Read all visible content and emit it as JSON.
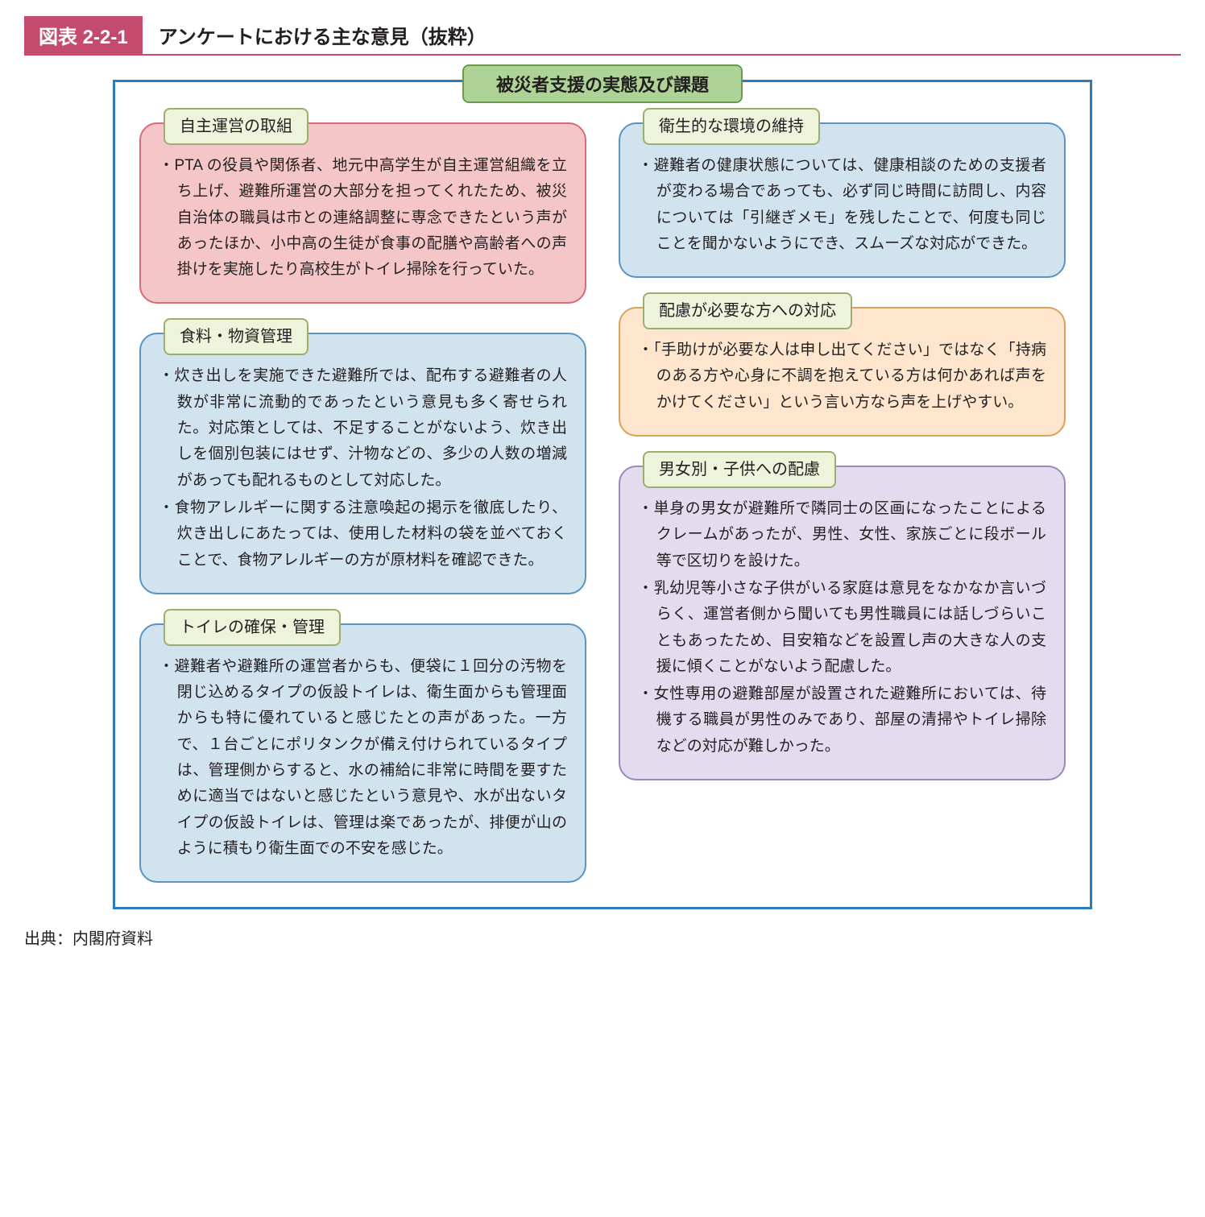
{
  "colors": {
    "header_bar_bg": "#c44b6e",
    "header_border": "#c44b6e",
    "frame_border": "#2b7bbf",
    "main_title_bg": "#aed396",
    "main_title_border": "#6a9a4a",
    "label_bg": "#eef3dc",
    "label_border": "#9cae6d",
    "card_pink_bg": "#f5c6c8",
    "card_pink_border": "#d76b78",
    "card_blue_bg": "#d2e3f0",
    "card_blue_border": "#5a93c4",
    "card_orange_bg": "#fde6cd",
    "card_orange_border": "#d9a35a",
    "card_purple_bg": "#e3dcee",
    "card_purple_border": "#9a89bf",
    "text": "#231f20"
  },
  "header": {
    "number": "図表 2-2-1",
    "title": "アンケートにおける主な意見（抜粋）"
  },
  "main_title": "被災者支援の実態及び課題",
  "left": [
    {
      "id": "self-management",
      "label": "自主運営の取組",
      "style": "pink",
      "items": [
        "PTA の役員や関係者、地元中高学生が自主運営組織を立ち上げ、避難所運営の大部分を担ってくれたため、被災自治体の職員は市との連絡調整に専念できたという声があったほか、小中高の生徒が食事の配膳や高齢者への声掛けを実施したり高校生がトイレ掃除を行っていた。"
      ]
    },
    {
      "id": "food-supply",
      "label": "食料・物資管理",
      "style": "blue",
      "items": [
        "炊き出しを実施できた避難所では、配布する避難者の人数が非常に流動的であったという意見も多く寄せられた。対応策としては、不足することがないよう、炊き出しを個別包装にはせず、汁物などの、多少の人数の増減があっても配れるものとして対応した。",
        "食物アレルギーに関する注意喚起の掲示を徹底したり、炊き出しにあたっては、使用した材料の袋を並べておくことで、食物アレルギーの方が原材料を確認できた。"
      ]
    },
    {
      "id": "toilet",
      "label": "トイレの確保・管理",
      "style": "blue",
      "items": [
        "避難者や避難所の運営者からも、便袋に１回分の汚物を閉じ込めるタイプの仮設トイレは、衛生面からも管理面からも特に優れていると感じたとの声があった。一方で、１台ごとにポリタンクが備え付けられているタイプは、管理側からすると、水の補給に非常に時間を要すために適当ではないと感じたという意見や、水が出ないタイプの仮設トイレは、管理は楽であったが、排便が山のように積もり衛生面での不安を感じた。"
      ]
    }
  ],
  "right": [
    {
      "id": "hygiene",
      "label": "衛生的な環境の維持",
      "style": "blue",
      "items": [
        "避難者の健康状態については、健康相談のための支援者が変わる場合であっても、必ず同じ時間に訪問し、内容については「引継ぎメモ」を残したことで、何度も同じことを聞かないようにでき、スムーズな対応ができた。"
      ]
    },
    {
      "id": "special-needs",
      "label": "配慮が必要な方への対応",
      "style": "orange",
      "items": [
        "「手助けが必要な人は申し出てください」ではなく「持病のある方や心身に不調を抱えている方は何かあれば声をかけてください」という言い方なら声を上げやすい。"
      ]
    },
    {
      "id": "gender-children",
      "label": "男女別・子供への配慮",
      "style": "purple",
      "items": [
        "単身の男女が避難所で隣同士の区画になったことによるクレームがあったが、男性、女性、家族ごとに段ボール等で区切りを設けた。",
        "乳幼児等小さな子供がいる家庭は意見をなかなか言いづらく、運営者側から聞いても男性職員には話しづらいこともあったため、目安箱などを設置し声の大きな人の支援に傾くことがないよう配慮した。",
        "女性専用の避難部屋が設置された避難所においては、待機する職員が男性のみであり、部屋の清掃やトイレ掃除などの対応が難しかった。"
      ]
    }
  ],
  "source": "出典：内閣府資料"
}
